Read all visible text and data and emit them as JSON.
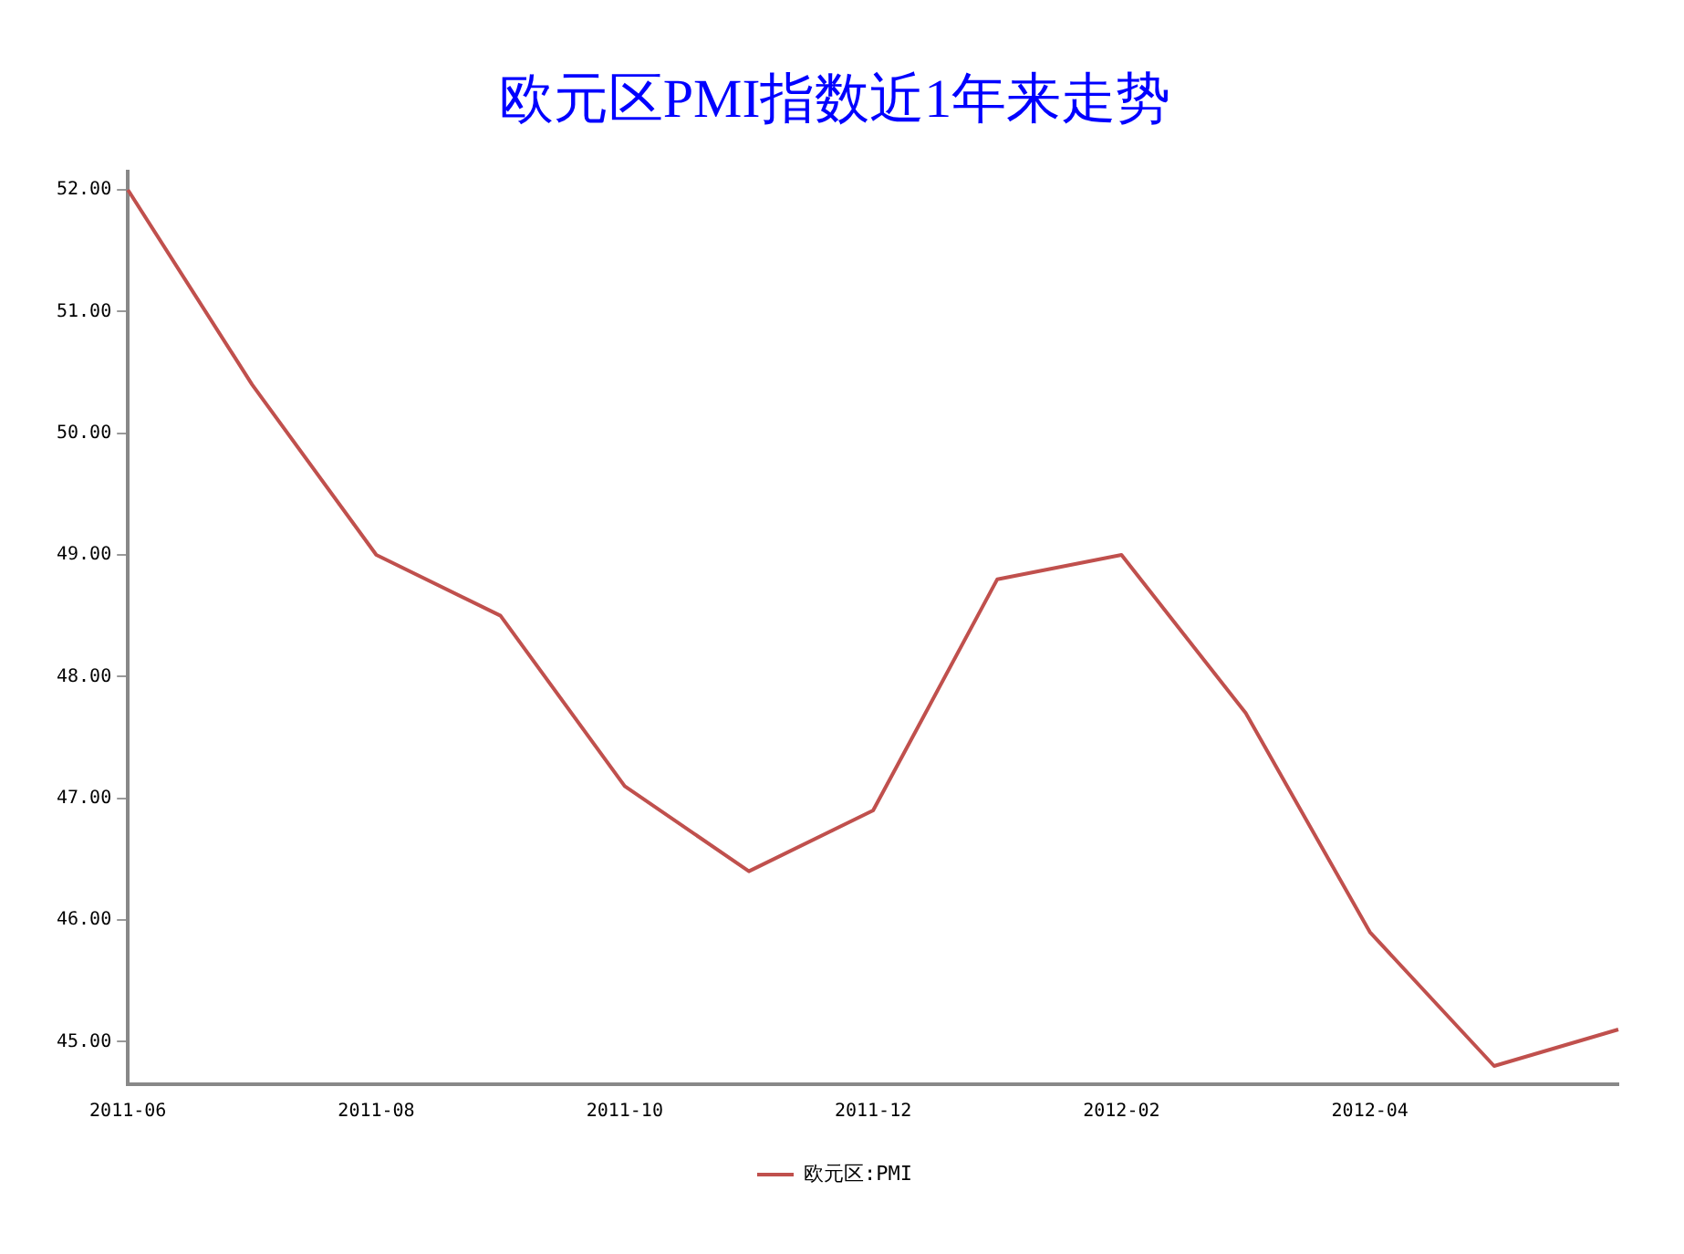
{
  "chart_data": {
    "type": "line",
    "title": "欧元区PMI指数近1年来走势",
    "categories": [
      "2011-06",
      null,
      "2011-08",
      null,
      "2011-10",
      null,
      "2011-12",
      null,
      "2012-02",
      null,
      "2012-04",
      null,
      null
    ],
    "series": [
      {
        "name": "欧元区:PMI",
        "color": "#c0504d",
        "values": [
          52.0,
          50.4,
          49.0,
          48.5,
          47.1,
          46.4,
          46.9,
          48.8,
          49.0,
          47.7,
          45.9,
          44.8,
          45.1
        ]
      }
    ],
    "ylim": [
      44.65,
      52.15
    ],
    "yticks": [
      {
        "value": 45,
        "label": "45.00"
      },
      {
        "value": 46,
        "label": "46.00"
      },
      {
        "value": 47,
        "label": "47.00"
      },
      {
        "value": 48,
        "label": "48.00"
      },
      {
        "value": 49,
        "label": "49.00"
      },
      {
        "value": 50,
        "label": "50.00"
      },
      {
        "value": 51,
        "label": "51.00"
      },
      {
        "value": 52,
        "label": "52.00"
      }
    ],
    "grid": false,
    "legend": "bottom",
    "marker": "none",
    "line_style": "solid"
  }
}
